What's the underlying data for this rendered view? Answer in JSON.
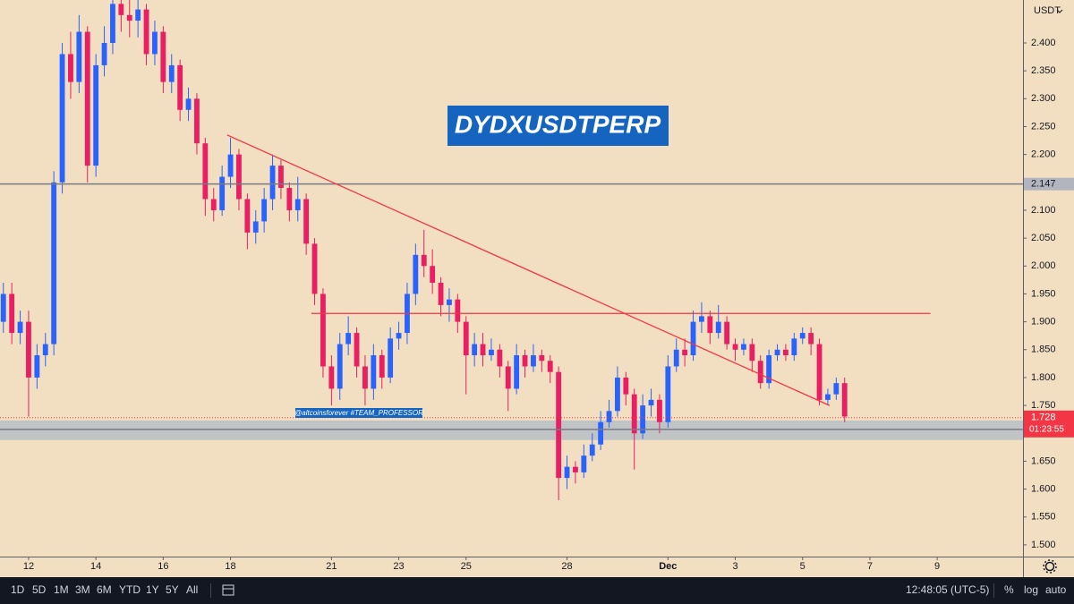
{
  "chart_data": {
    "type": "candlestick",
    "title": "DYDXUSDTPERP",
    "watermark": "@altcoinsforever #TEAM_PROFESSOR",
    "currency": "USDT",
    "up_color": "#2962ff",
    "down_color": "#e91e63",
    "background": "#f2dfc1",
    "x": [
      11.25,
      11.5,
      11.75,
      12,
      12.25,
      12.5,
      12.75,
      13,
      13.25,
      13.5,
      13.75,
      14,
      14.25,
      14.5,
      14.75,
      15,
      15.25,
      15.5,
      15.75,
      16,
      16.25,
      16.5,
      16.75,
      17,
      17.25,
      17.5,
      17.75,
      18,
      18.25,
      18.5,
      18.75,
      19,
      19.25,
      19.5,
      19.75,
      20,
      20.25,
      20.5,
      20.75,
      21,
      21.25,
      21.5,
      21.75,
      22,
      22.25,
      22.5,
      22.75,
      23,
      23.25,
      23.5,
      23.75,
      24,
      24.25,
      24.5,
      24.75,
      25,
      25.25,
      25.5,
      25.75,
      26,
      26.25,
      26.5,
      26.75,
      27,
      27.25,
      27.5,
      27.75,
      28,
      28.25,
      28.5,
      28.75,
      29,
      29.25,
      29.5,
      29.75,
      30,
      30.25,
      30.5,
      30.75,
      31,
      31.25,
      31.5,
      31.75,
      32,
      32.25,
      32.5,
      32.75,
      33,
      33.25,
      33.5,
      33.75,
      34,
      34.25,
      34.5,
      34.75,
      35,
      35.25,
      35.5,
      35.75,
      36,
      36.25
    ],
    "open": [
      1.9,
      1.95,
      1.88,
      1.9,
      1.8,
      1.84,
      1.86,
      2.15,
      2.38,
      2.33,
      2.42,
      2.18,
      2.36,
      2.4,
      2.47,
      2.45,
      2.44,
      2.46,
      2.38,
      2.42,
      2.33,
      2.36,
      2.28,
      2.3,
      2.22,
      2.12,
      2.1,
      2.16,
      2.2,
      2.12,
      2.06,
      2.08,
      2.12,
      2.18,
      2.14,
      2.1,
      2.12,
      2.04,
      1.95,
      1.82,
      1.78,
      1.86,
      1.88,
      1.82,
      1.78,
      1.84,
      1.8,
      1.87,
      1.88,
      1.95,
      2.02,
      2.0,
      1.97,
      1.93,
      1.94,
      1.9,
      1.84,
      1.86,
      1.84,
      1.85,
      1.82,
      1.78,
      1.84,
      1.82,
      1.84,
      1.83,
      1.81,
      1.62,
      1.64,
      1.63,
      1.66,
      1.68,
      1.72,
      1.74,
      1.8,
      1.77,
      1.7,
      1.75,
      1.76,
      1.72,
      1.82,
      1.85,
      1.84,
      1.9,
      1.91,
      1.88,
      1.9,
      1.86,
      1.85,
      1.86,
      1.83,
      1.79,
      1.84,
      1.85,
      1.84,
      1.87,
      1.88,
      1.86,
      1.76,
      1.77,
      1.79
    ],
    "high": [
      1.97,
      1.97,
      1.92,
      1.92,
      1.86,
      1.88,
      2.17,
      2.4,
      2.42,
      2.45,
      2.43,
      2.38,
      2.43,
      2.5,
      2.5,
      2.48,
      2.49,
      2.47,
      2.44,
      2.43,
      2.38,
      2.37,
      2.32,
      2.31,
      2.23,
      2.14,
      2.18,
      2.23,
      2.21,
      2.13,
      2.1,
      2.14,
      2.2,
      2.19,
      2.15,
      2.16,
      2.13,
      2.05,
      1.96,
      1.84,
      1.88,
      1.91,
      1.89,
      1.84,
      1.86,
      1.85,
      1.89,
      1.9,
      1.97,
      2.04,
      2.065,
      2.03,
      1.98,
      1.96,
      1.95,
      1.91,
      1.88,
      1.88,
      1.87,
      1.86,
      1.83,
      1.86,
      1.85,
      1.86,
      1.85,
      1.84,
      1.82,
      1.66,
      1.65,
      1.68,
      1.7,
      1.74,
      1.76,
      1.82,
      1.81,
      1.78,
      1.77,
      1.78,
      1.77,
      1.84,
      1.87,
      1.87,
      1.92,
      1.935,
      1.92,
      1.93,
      1.91,
      1.87,
      1.87,
      1.87,
      1.84,
      1.85,
      1.86,
      1.86,
      1.88,
      1.89,
      1.89,
      1.87,
      1.78,
      1.8,
      1.8
    ],
    "low": [
      1.88,
      1.86,
      1.86,
      1.73,
      1.78,
      1.82,
      1.84,
      2.13,
      2.3,
      2.31,
      2.15,
      2.16,
      2.34,
      2.38,
      2.42,
      2.41,
      2.41,
      2.36,
      2.36,
      2.31,
      2.31,
      2.26,
      2.26,
      2.2,
      2.09,
      2.08,
      2.09,
      2.14,
      2.1,
      2.03,
      2.04,
      2.06,
      2.1,
      2.12,
      2.08,
      2.08,
      2.02,
      1.93,
      1.8,
      1.75,
      1.76,
      1.84,
      1.8,
      1.75,
      1.76,
      1.78,
      1.79,
      1.85,
      1.86,
      1.93,
      1.98,
      1.95,
      1.91,
      1.9,
      1.88,
      1.77,
      1.82,
      1.82,
      1.83,
      1.8,
      1.74,
      1.77,
      1.8,
      1.81,
      1.81,
      1.79,
      1.58,
      1.6,
      1.61,
      1.62,
      1.65,
      1.67,
      1.71,
      1.73,
      1.75,
      1.635,
      1.69,
      1.73,
      1.7,
      1.71,
      1.81,
      1.82,
      1.83,
      1.88,
      1.86,
      1.87,
      1.85,
      1.83,
      1.84,
      1.81,
      1.78,
      1.78,
      1.83,
      1.83,
      1.83,
      1.86,
      1.84,
      1.75,
      1.75,
      1.76,
      1.72
    ],
    "close": [
      1.95,
      1.88,
      1.9,
      1.8,
      1.84,
      1.86,
      2.15,
      2.38,
      2.33,
      2.42,
      2.18,
      2.36,
      2.4,
      2.47,
      2.45,
      2.44,
      2.46,
      2.38,
      2.42,
      2.33,
      2.36,
      2.28,
      2.3,
      2.22,
      2.12,
      2.1,
      2.16,
      2.2,
      2.12,
      2.06,
      2.08,
      2.12,
      2.18,
      2.14,
      2.1,
      2.12,
      2.04,
      1.95,
      1.82,
      1.78,
      1.86,
      1.88,
      1.82,
      1.78,
      1.84,
      1.8,
      1.87,
      1.88,
      1.95,
      2.02,
      2.0,
      1.97,
      1.93,
      1.94,
      1.9,
      1.84,
      1.86,
      1.84,
      1.85,
      1.82,
      1.78,
      1.84,
      1.82,
      1.84,
      1.83,
      1.81,
      1.62,
      1.64,
      1.63,
      1.66,
      1.68,
      1.72,
      1.74,
      1.8,
      1.77,
      1.7,
      1.75,
      1.76,
      1.72,
      1.82,
      1.85,
      1.84,
      1.9,
      1.91,
      1.88,
      1.9,
      1.86,
      1.85,
      1.86,
      1.83,
      1.79,
      1.84,
      1.85,
      1.84,
      1.87,
      1.88,
      1.86,
      1.76,
      1.77,
      1.79,
      1.73
    ],
    "xlim": [
      11.15,
      41.55
    ],
    "ylim": [
      1.479,
      2.477
    ],
    "xticks": [
      12,
      14,
      16,
      18,
      21,
      23,
      25,
      28,
      {
        "value": 31,
        "label": "Dec"
      },
      {
        "value": 33,
        "label": "3"
      },
      {
        "value": 35,
        "label": "5"
      },
      {
        "value": 37,
        "label": "7"
      },
      {
        "value": 39,
        "label": "9"
      }
    ],
    "yticks": [
      {
        "value": 2.4,
        "label": "2.400"
      },
      {
        "value": 2.35,
        "label": "2.350"
      },
      {
        "value": 2.3,
        "label": "2.300"
      },
      {
        "value": 2.25,
        "label": "2.250"
      },
      {
        "value": 2.2,
        "label": "2.200"
      },
      {
        "value": 2.15,
        "label": "2.150"
      },
      {
        "value": 2.1,
        "label": "2.100"
      },
      {
        "value": 2.05,
        "label": "2.050"
      },
      {
        "value": 2.0,
        "label": "2.000"
      },
      {
        "value": 1.95,
        "label": "1.950"
      },
      {
        "value": 1.9,
        "label": "1.900"
      },
      {
        "value": 1.85,
        "label": "1.850"
      },
      {
        "value": 1.8,
        "label": "1.800"
      },
      {
        "value": 1.75,
        "label": "1.750"
      },
      {
        "value": 1.7,
        "label": "1.700"
      },
      {
        "value": 1.65,
        "label": "1.650"
      },
      {
        "value": 1.6,
        "label": "1.600"
      },
      {
        "value": 1.55,
        "label": "1.550"
      },
      {
        "value": 1.5,
        "label": "1.500"
      }
    ],
    "price_lines": [
      {
        "value": 2.147,
        "color": "#787b86"
      },
      {
        "value": 1.707,
        "color": "#787b86"
      }
    ],
    "zone": [
      1.688,
      1.723
    ],
    "zone_color": "#9fb3c8",
    "last_price": 1.728,
    "countdown": "01:23:55",
    "last_color": "#f23645",
    "resistance": {
      "x": [
        20.4,
        38.8
      ],
      "y": [
        1.915,
        1.915
      ],
      "color": "#f23645"
    },
    "trendline": {
      "x": [
        17.9,
        35.8
      ],
      "y": [
        2.235,
        1.75
      ],
      "color": "#f23645"
    }
  },
  "toolbar": {
    "ranges": [
      "1D",
      "5D",
      "1M",
      "3M",
      "6M",
      "YTD",
      "1Y",
      "5Y",
      "All"
    ],
    "time": "12:48:05 (UTC-5)",
    "percent": "%",
    "log": "log",
    "auto": "auto"
  }
}
